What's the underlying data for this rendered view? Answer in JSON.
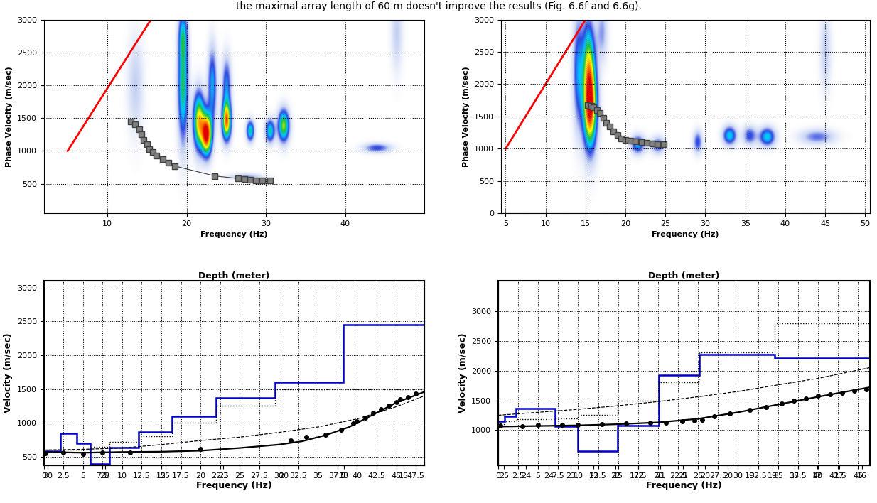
{
  "caption": "the maximal array length of 60 m doesn't improve the results (Fig. 6.6f and 6.6g).",
  "chart_data": [
    {
      "type": "heatmap",
      "xlabel": "Frequency (Hz)",
      "ylabel": "Phase Velocity (m/sec)",
      "xlim": [
        2,
        50
      ],
      "xticks": [
        10,
        20,
        30,
        40
      ],
      "ylim": [
        50,
        3000
      ],
      "yticks": [
        500,
        1000,
        1500,
        2000,
        2500,
        3000
      ],
      "grid": true,
      "energy_peaks": [
        {
          "frequency": 19.5,
          "velocity": 2000,
          "amplitude": 0.55,
          "freq_width": 0.45,
          "vel_width": 600
        },
        {
          "frequency": 19.5,
          "velocity": 2750,
          "amplitude": 0.3,
          "freq_width": 0.4,
          "vel_width": 250
        },
        {
          "frequency": 21.5,
          "velocity": 1450,
          "amplitude": 0.75,
          "freq_width": 0.5,
          "vel_width": 300
        },
        {
          "frequency": 22.5,
          "velocity": 1250,
          "amplitude": 1.0,
          "freq_width": 0.45,
          "vel_width": 220
        },
        {
          "frequency": 23.2,
          "velocity": 2000,
          "amplitude": 0.4,
          "freq_width": 0.4,
          "vel_width": 400
        },
        {
          "frequency": 25.0,
          "velocity": 1450,
          "amplitude": 0.85,
          "freq_width": 0.4,
          "vel_width": 200
        },
        {
          "frequency": 25.0,
          "velocity": 2000,
          "amplitude": 0.35,
          "freq_width": 0.4,
          "vel_width": 300
        },
        {
          "frequency": 28.0,
          "velocity": 1300,
          "amplitude": 0.5,
          "freq_width": 0.35,
          "vel_width": 110
        },
        {
          "frequency": 30.5,
          "velocity": 1300,
          "amplitude": 0.5,
          "freq_width": 0.4,
          "vel_width": 120
        },
        {
          "frequency": 32.2,
          "velocity": 1380,
          "amplitude": 0.65,
          "freq_width": 0.5,
          "vel_width": 170
        },
        {
          "frequency": 13.5,
          "velocity": 2000,
          "amplitude": 0.15,
          "freq_width": 0.7,
          "vel_width": 500
        },
        {
          "frequency": 44.0,
          "velocity": 1040,
          "amplitude": 0.3,
          "freq_width": 1.2,
          "vel_width": 50
        },
        {
          "frequency": 27.5,
          "velocity": 600,
          "amplitude": 0.2,
          "freq_width": 1.5,
          "vel_width": 35
        },
        {
          "frequency": 46.5,
          "velocity": 2800,
          "amplitude": 0.15,
          "freq_width": 0.5,
          "vel_width": 400
        }
      ],
      "aliasing_line": {
        "x": [
          5,
          15.5
        ],
        "y": [
          1000,
          3000
        ],
        "color": "#ff0000"
      },
      "picks": {
        "x": [
          13,
          13.5,
          14,
          14.3,
          14.6,
          15,
          15.3,
          15.7,
          16.2,
          17,
          17.7,
          18.5,
          23.5,
          26.5,
          27.3,
          28,
          28.7,
          29.5,
          30.5
        ],
        "y": [
          1450,
          1400,
          1330,
          1250,
          1170,
          1100,
          1030,
          980,
          930,
          870,
          820,
          770,
          620,
          580,
          570,
          560,
          555,
          550,
          545
        ],
        "color": "#808080",
        "marker": "square"
      }
    },
    {
      "type": "heatmap",
      "xlabel": "Frequency (Hz)",
      "ylabel": "Phase Velocity (m/sec)",
      "xlim": [
        4.4,
        50.6
      ],
      "xticks": [
        5,
        10,
        15,
        20,
        25,
        30,
        35,
        40,
        45,
        50
      ],
      "ylim": [
        0,
        3000
      ],
      "yticks": [
        0,
        500,
        1000,
        1500,
        2000,
        2500,
        3000
      ],
      "grid": true,
      "energy_peaks": [
        {
          "frequency": 15.5,
          "velocity": 1650,
          "amplitude": 1.0,
          "freq_width": 0.6,
          "vel_width": 450
        },
        {
          "frequency": 15.3,
          "velocity": 2400,
          "amplitude": 0.5,
          "freq_width": 0.55,
          "vel_width": 450
        },
        {
          "frequency": 14.0,
          "velocity": 2200,
          "amplitude": 0.35,
          "freq_width": 0.45,
          "vel_width": 600
        },
        {
          "frequency": 17.0,
          "velocity": 2800,
          "amplitude": 0.2,
          "freq_width": 0.5,
          "vel_width": 300
        },
        {
          "frequency": 21.5,
          "velocity": 1060,
          "amplitude": 0.4,
          "freq_width": 0.6,
          "vel_width": 100
        },
        {
          "frequency": 24.0,
          "velocity": 1050,
          "amplitude": 0.3,
          "freq_width": 0.6,
          "vel_width": 90
        },
        {
          "frequency": 29.0,
          "velocity": 1100,
          "amplitude": 0.3,
          "freq_width": 0.4,
          "vel_width": 120
        },
        {
          "frequency": 33.0,
          "velocity": 1200,
          "amplitude": 0.45,
          "freq_width": 0.6,
          "vel_width": 100
        },
        {
          "frequency": 35.5,
          "velocity": 1200,
          "amplitude": 0.3,
          "freq_width": 0.6,
          "vel_width": 100
        },
        {
          "frequency": 37.7,
          "velocity": 1180,
          "amplitude": 0.45,
          "freq_width": 0.7,
          "vel_width": 100
        },
        {
          "frequency": 44.0,
          "velocity": 1180,
          "amplitude": 0.25,
          "freq_width": 1.5,
          "vel_width": 80
        },
        {
          "frequency": 45.0,
          "velocity": 2500,
          "amplitude": 0.15,
          "freq_width": 0.5,
          "vel_width": 400
        }
      ],
      "aliasing_line": {
        "x": [
          5,
          15
        ],
        "y": [
          1000,
          3000
        ],
        "color": "#ff0000"
      },
      "picks": {
        "x": [
          15.3,
          15.7,
          16,
          16.4,
          16.8,
          17.2,
          17.6,
          18,
          18.5,
          19,
          19.5,
          20,
          20.6,
          21.2,
          22,
          22.7,
          23.4,
          24,
          24.8
        ],
        "y": [
          1670,
          1660,
          1640,
          1600,
          1550,
          1480,
          1400,
          1340,
          1270,
          1210,
          1160,
          1140,
          1120,
          1110,
          1100,
          1090,
          1080,
          1075,
          1065
        ],
        "color": "#808080",
        "marker": "square"
      }
    },
    {
      "type": "line",
      "xlabel": "Depth (meter)",
      "x2label": "Frequency (Hz)",
      "ylabel": "Velocity (m/sec)",
      "xlim": [
        0,
        48.6
      ],
      "xticks": [
        0,
        2.5,
        5,
        7.5,
        10,
        12.5,
        15,
        17.5,
        20,
        22.5,
        25,
        27.5,
        30,
        32.5,
        35,
        37.5,
        40,
        42.5,
        45,
        47.5
      ],
      "x2lim": [
        0,
        48.6
      ],
      "x2ticks": [
        {
          "value": 0.5,
          "label": "30"
        },
        {
          "value": 7.8,
          "label": "28"
        },
        {
          "value": 15.5,
          "label": "25"
        },
        {
          "value": 22.9,
          "label": "23"
        },
        {
          "value": 30.6,
          "label": "20"
        },
        {
          "value": 38.3,
          "label": "18"
        },
        {
          "value": 45.9,
          "label": "15"
        }
      ],
      "ylim": [
        375,
        3100
      ],
      "yticks": [
        500,
        1000,
        1500,
        2000,
        2500,
        3000
      ],
      "grid": true,
      "series": [
        {
          "type": "step",
          "color": "#0000cc",
          "line_style": "solid",
          "edges": [
            0,
            2.1,
            4.2,
            5.9,
            8.4,
            12.1,
            16.4,
            22.0,
            29.5,
            38.2,
            48.6
          ],
          "values": [
            580,
            850,
            700,
            400,
            640,
            870,
            1100,
            1370,
            1600,
            2450
          ]
        },
        {
          "type": "step",
          "color": "#000000",
          "line_style": "dotted",
          "edges": [
            0,
            2.1,
            4.2,
            5.9,
            8.4,
            12.1,
            16.4,
            22.0,
            29.5,
            38.2,
            48.6
          ],
          "values": [
            600,
            600,
            600,
            650,
            720,
            800,
            1000,
            1250,
            1500,
            1500
          ]
        },
        {
          "type": "line",
          "color": "#000000",
          "line_style": "dashed",
          "x": [
            0,
            5,
            10,
            15,
            20,
            25,
            30,
            35,
            40,
            45,
            48.6
          ],
          "values": [
            600,
            610,
            630,
            680,
            740,
            790,
            860,
            940,
            1060,
            1240,
            1400
          ]
        },
        {
          "type": "line",
          "color": "#000000",
          "line_style": "solid",
          "x": [
            0,
            5,
            10,
            15,
            20,
            25,
            30,
            33,
            36,
            39,
            42,
            45,
            48.6
          ],
          "values": [
            570,
            560,
            570,
            575,
            590,
            630,
            680,
            730,
            820,
            940,
            1120,
            1300,
            1460
          ]
        },
        {
          "type": "scatter",
          "color": "#000000",
          "marker": "circle",
          "x": [
            0.2,
            2.5,
            5,
            7.5,
            11,
            20,
            31.5,
            33.5,
            36,
            38,
            39.5,
            40,
            41,
            42,
            43,
            44,
            45,
            45.5,
            46.5,
            47.5
          ],
          "values": [
            550,
            560,
            545,
            560,
            565,
            610,
            740,
            790,
            830,
            900,
            990,
            1020,
            1080,
            1150,
            1200,
            1260,
            1310,
            1350,
            1380,
            1430
          ]
        }
      ]
    },
    {
      "type": "line",
      "xlabel": "Depth (meter)",
      "x2label": "Frequency (Hz)",
      "ylabel": "Velocity (m/sec)",
      "xlim": [
        0,
        46.5
      ],
      "xticks": [
        0,
        2.5,
        5,
        7.5,
        10,
        12.5,
        15,
        17.5,
        20,
        22.5,
        25,
        27.5,
        30,
        32.5,
        35,
        37.5,
        40,
        42.5,
        45
      ],
      "x2lim": [
        0,
        46.5
      ],
      "x2ticks": [
        {
          "value": 0.7,
          "label": "25"
        },
        {
          "value": 3.5,
          "label": "24"
        },
        {
          "value": 6.3,
          "label": "24"
        },
        {
          "value": 9.1,
          "label": "23"
        },
        {
          "value": 11.9,
          "label": "23"
        },
        {
          "value": 14.7,
          "label": "22"
        },
        {
          "value": 17.5,
          "label": "22"
        },
        {
          "value": 20.3,
          "label": "21"
        },
        {
          "value": 23.1,
          "label": "21"
        },
        {
          "value": 25.9,
          "label": "20"
        },
        {
          "value": 28.7,
          "label": "20"
        },
        {
          "value": 31.5,
          "label": "19"
        },
        {
          "value": 34.3,
          "label": "19"
        },
        {
          "value": 37.1,
          "label": "18"
        },
        {
          "value": 39.9,
          "label": "17"
        },
        {
          "value": 42.7,
          "label": "17"
        },
        {
          "value": 45.5,
          "label": "16"
        }
      ],
      "ylim": [
        410,
        3510
      ],
      "yticks": [
        1000,
        1500,
        2000,
        2500,
        3000
      ],
      "grid": true,
      "series": [
        {
          "type": "step",
          "color": "#0000cc",
          "line_style": "solid",
          "edges": [
            0,
            0.8,
            2.2,
            7.1,
            10.0,
            14.9,
            20.1,
            25.2,
            34.6,
            46.5
          ],
          "values": [
            1150,
            1230,
            1360,
            1070,
            650,
            1080,
            1920,
            2270,
            2210
          ]
        },
        {
          "type": "step",
          "color": "#000000",
          "line_style": "dotted",
          "edges": [
            0,
            0.8,
            2.2,
            7.1,
            10.0,
            14.9,
            20.1,
            25.2,
            34.6,
            46.5
          ],
          "values": [
            1100,
            1150,
            1180,
            1200,
            1250,
            1500,
            1800,
            2300,
            2800
          ]
        },
        {
          "type": "line",
          "color": "#000000",
          "line_style": "dashed",
          "x": [
            0,
            5,
            10,
            15,
            20,
            25,
            30,
            35,
            40,
            46.5
          ],
          "values": [
            1250,
            1300,
            1350,
            1410,
            1480,
            1560,
            1650,
            1760,
            1870,
            2050
          ]
        },
        {
          "type": "line",
          "color": "#000000",
          "line_style": "solid",
          "x": [
            0,
            5,
            10,
            15,
            20,
            25,
            30,
            35,
            40,
            46.5
          ],
          "values": [
            1060,
            1070,
            1080,
            1100,
            1130,
            1190,
            1300,
            1430,
            1560,
            1720
          ]
        },
        {
          "type": "scatter",
          "color": "#000000",
          "marker": "circle",
          "x": [
            0.3,
            3,
            5,
            8,
            10,
            13,
            16,
            19,
            21,
            23,
            24.5,
            25.5,
            27,
            29,
            31.5,
            33.5,
            35.5,
            37,
            38.5,
            40,
            41.5,
            43,
            44.5,
            46
          ],
          "values": [
            1080,
            1070,
            1090,
            1085,
            1090,
            1100,
            1110,
            1130,
            1120,
            1150,
            1165,
            1175,
            1230,
            1280,
            1340,
            1390,
            1450,
            1500,
            1530,
            1580,
            1600,
            1620,
            1660,
            1680
          ]
        }
      ]
    }
  ]
}
